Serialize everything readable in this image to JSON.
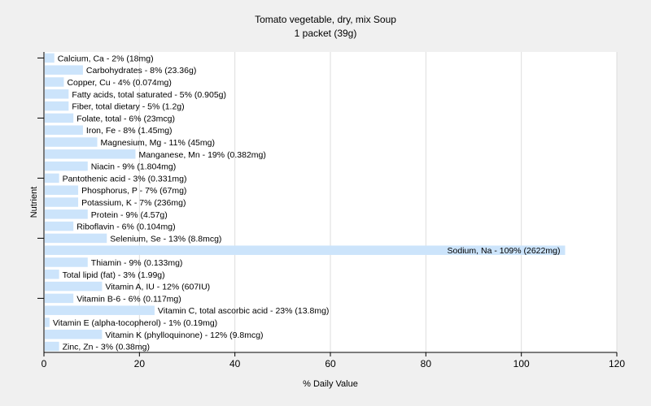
{
  "chart_data": {
    "type": "bar",
    "orientation": "horizontal",
    "title": "Tomato vegetable, dry, mix Soup",
    "subtitle": "1 packet (39g)",
    "xlabel": "% Daily Value",
    "ylabel": "Nutrient",
    "xlim": [
      0,
      120
    ],
    "xticks": [
      "0",
      "20",
      "40",
      "60",
      "80",
      "100",
      "120"
    ],
    "grid": true,
    "bar_color": "#cce4fb",
    "categories": [
      "Calcium, Ca",
      "Carbohydrates",
      "Copper, Cu",
      "Fatty acids, total saturated",
      "Fiber, total dietary",
      "Folate, total",
      "Iron, Fe",
      "Magnesium, Mg",
      "Manganese, Mn",
      "Niacin",
      "Pantothenic acid",
      "Phosphorus, P",
      "Potassium, K",
      "Protein",
      "Riboflavin",
      "Selenium, Se",
      "Sodium, Na",
      "Thiamin",
      "Total lipid (fat)",
      "Vitamin A, IU",
      "Vitamin B-6",
      "Vitamin C, total ascorbic acid",
      "Vitamin E (alpha-tocopherol)",
      "Vitamin K (phylloquinone)",
      "Zinc, Zn"
    ],
    "values": [
      2,
      8,
      4,
      5,
      5,
      6,
      8,
      11,
      19,
      9,
      3,
      7,
      7,
      9,
      6,
      13,
      109,
      9,
      3,
      12,
      6,
      23,
      1,
      12,
      3
    ],
    "labels": [
      "Calcium, Ca - 2% (18mg)",
      "Carbohydrates - 8% (23.36g)",
      "Copper, Cu - 4% (0.074mg)",
      "Fatty acids, total saturated - 5% (0.905g)",
      "Fiber, total dietary - 5% (1.2g)",
      "Folate, total - 6% (23mcg)",
      "Iron, Fe - 8% (1.45mg)",
      "Magnesium, Mg - 11% (45mg)",
      "Manganese, Mn - 19% (0.382mg)",
      "Niacin - 9% (1.804mg)",
      "Pantothenic acid - 3% (0.331mg)",
      "Phosphorus, P - 7% (67mg)",
      "Potassium, K - 7% (236mg)",
      "Protein - 9% (4.57g)",
      "Riboflavin - 6% (0.104mg)",
      "Selenium, Se - 13% (8.8mcg)",
      "Sodium, Na - 109% (2622mg)",
      "Thiamin - 9% (0.133mg)",
      "Total lipid (fat) - 3% (1.99g)",
      "Vitamin A, IU - 12% (607IU)",
      "Vitamin B-6 - 6% (0.117mg)",
      "Vitamin C, total ascorbic acid - 23% (13.8mg)",
      "Vitamin E (alpha-tocopherol) - 1% (0.19mg)",
      "Vitamin K (phylloquinone) - 12% (9.8mcg)",
      "Zinc, Zn - 3% (0.38mg)"
    ]
  }
}
